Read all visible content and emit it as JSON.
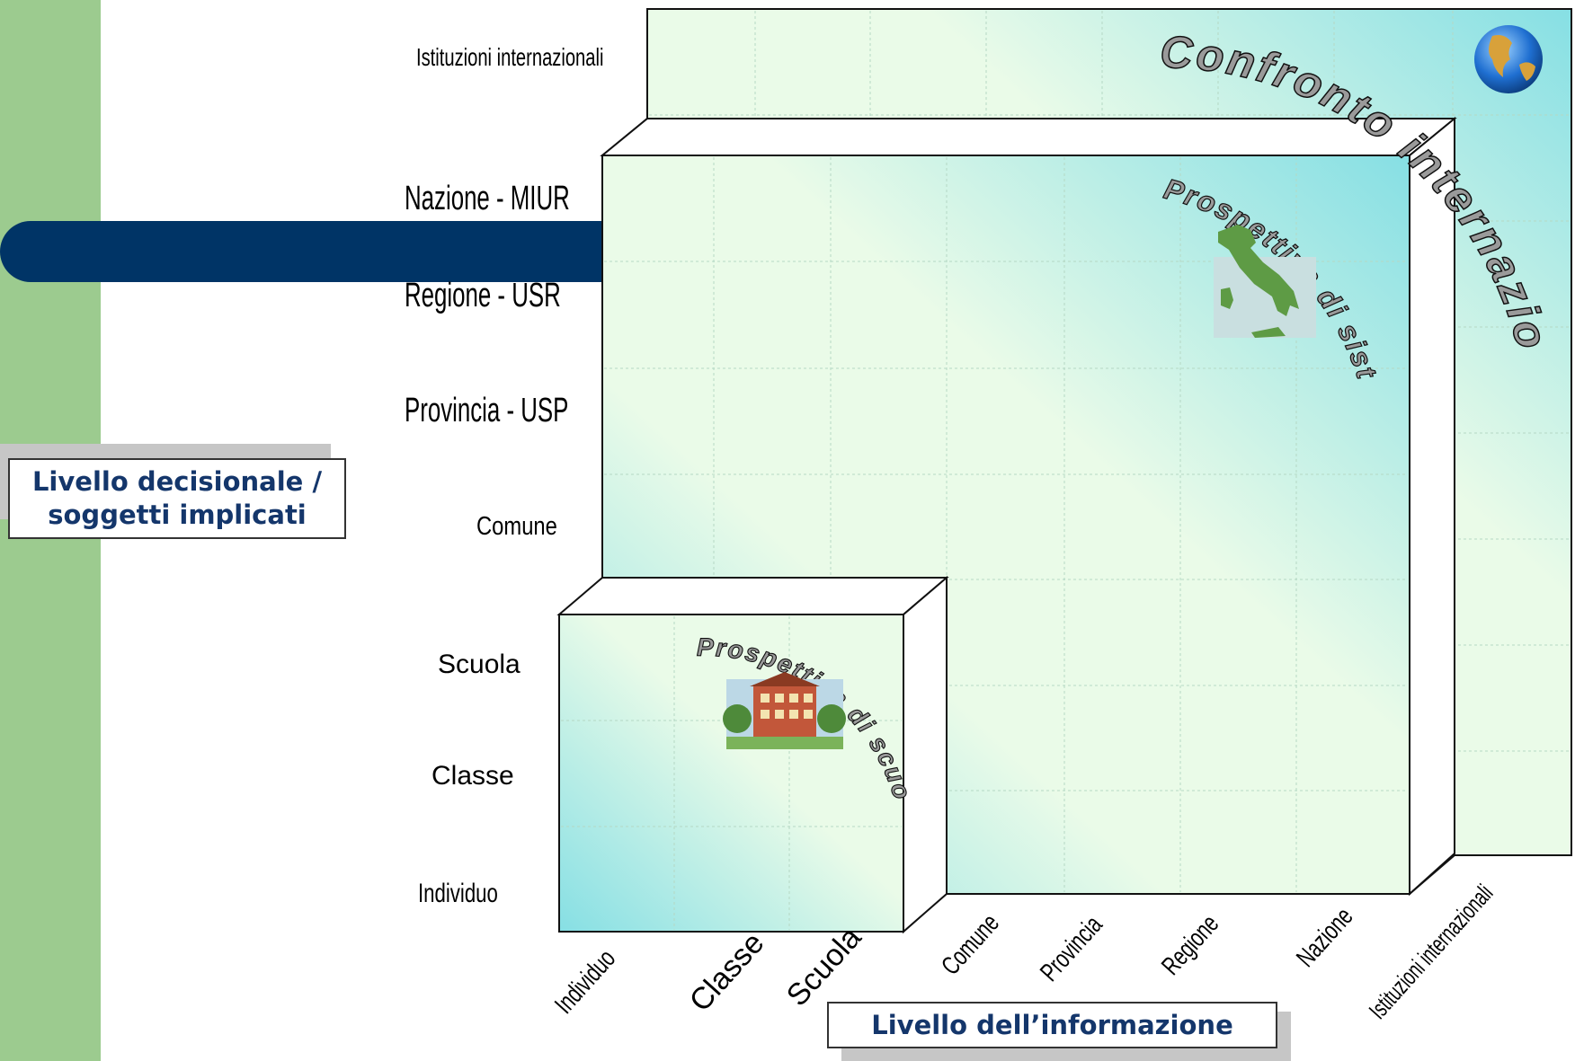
{
  "y_axis": {
    "title": "Livello decisionale / soggetti implicati",
    "levels": [
      "Istituzioni internazionali",
      "Nazione - MIUR",
      "Regione - USR",
      "Provincia - USP",
      "Comune",
      "Scuola",
      "Classe",
      "Individuo"
    ]
  },
  "x_axis": {
    "title": "Livello dell’informazione",
    "levels": [
      "Individuo",
      "Classe",
      "Scuola",
      "Comune",
      "Provincia",
      "Regione",
      "Nazione",
      "Istituzioni internazionali"
    ]
  },
  "perspectives": {
    "international": "Confronto internazionale",
    "system": "Prospettiva di sistema",
    "school": "Prospettiva di scuola"
  },
  "icons": [
    "globe-icon",
    "italy-map-icon",
    "school-building-icon"
  ],
  "colors": {
    "side_band": "#9ccb8f",
    "navy_bar": "#003466",
    "label_text": "#14366b",
    "panel_light": "#eafbe8",
    "panel_cyan": "#86dfe4"
  }
}
